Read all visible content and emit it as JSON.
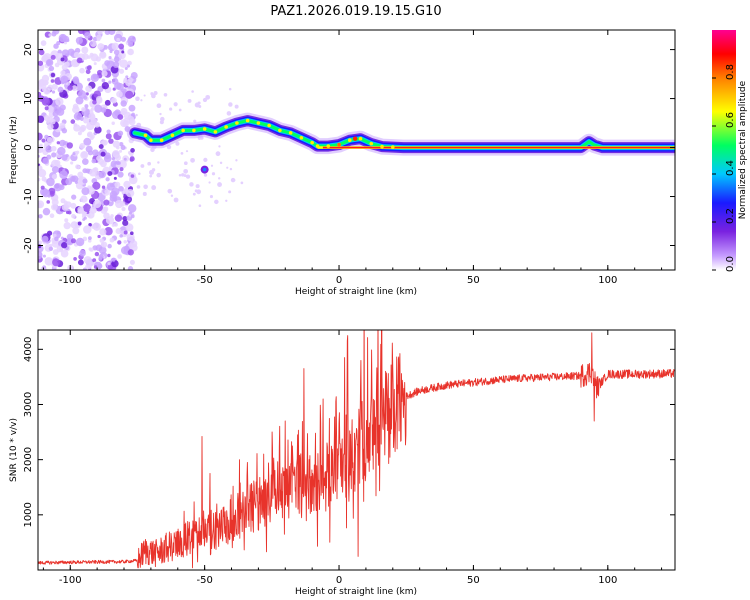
{
  "chart_data": [
    {
      "type": "heatmap",
      "title": "PAZ1.2026.019.19.15.G10",
      "xlabel": "Height of straight line (km)",
      "ylabel": "Frequency (Hz)",
      "xlim": [
        -112,
        125
      ],
      "ylim": [
        -25,
        24
      ],
      "xticks": [
        -100,
        -50,
        0,
        50,
        100
      ],
      "xtick_labels": [
        "-100",
        "-50",
        "0",
        "50",
        "100"
      ],
      "yticks": [
        -20,
        -10,
        0,
        10,
        20
      ],
      "ytick_labels": [
        "-20",
        "-10",
        "0",
        "10",
        "20"
      ],
      "ridge": {
        "x": [
          -76,
          -72,
          -70,
          -66,
          -62,
          -58,
          -54,
          -50,
          -46,
          -42,
          -38,
          -34,
          -30,
          -26,
          -22,
          -18,
          -14,
          -10,
          -8,
          -4,
          0,
          4,
          8,
          12,
          16,
          20,
          24,
          30,
          40,
          60,
          80,
          90,
          93,
          95,
          98,
          125
        ],
        "y": [
          3.0,
          2.5,
          1.5,
          1.5,
          2.5,
          3.5,
          3.5,
          3.8,
          3.2,
          4.2,
          5.0,
          5.5,
          5.0,
          4.5,
          3.5,
          3.0,
          2.0,
          1.0,
          0.3,
          0.3,
          0.6,
          1.5,
          1.8,
          0.8,
          0.2,
          0.1,
          0.0,
          0.0,
          0.0,
          0.0,
          0.0,
          0.0,
          1.2,
          0.5,
          0.0,
          0.0
        ]
      },
      "noise_region_x": [
        -112,
        -76
      ],
      "colorbar": {
        "label": "Normalized spectral amplitude",
        "range": [
          0.0,
          1.0
        ],
        "ticks": [
          0.0,
          0.2,
          0.4,
          0.6,
          0.8
        ],
        "tick_labels": [
          "0.0",
          "0.2",
          "0.4",
          "0.6",
          "0.8"
        ],
        "colors": [
          "#ffffff",
          "#8a2be2",
          "#0000ff",
          "#00ffff",
          "#00ff00",
          "#ffff00",
          "#ff7f00",
          "#ff0000",
          "#ff00aa"
        ]
      }
    },
    {
      "type": "line",
      "xlabel": "Height of straight line (km)",
      "ylabel": "SNR (10 * v/v)",
      "xlim": [
        -112,
        125
      ],
      "ylim": [
        0,
        4350
      ],
      "xticks": [
        -100,
        -50,
        0,
        50,
        100
      ],
      "xtick_labels": [
        "-100",
        "-50",
        "0",
        "50",
        "100"
      ],
      "yticks": [
        1000,
        2000,
        3000,
        4000
      ],
      "ytick_labels": [
        "1000",
        "2000",
        "3000",
        "4000"
      ],
      "series": [
        {
          "name": "SNR",
          "color": "#e8332b",
          "envelope_x": [
            -112,
            -100,
            -80,
            -75,
            -72,
            -68,
            -64,
            -60,
            -55,
            -50,
            -45,
            -40,
            -35,
            -30,
            -25,
            -20,
            -15,
            -10,
            -5,
            0,
            5,
            10,
            15,
            20,
            25,
            30,
            40,
            50,
            60,
            70,
            80,
            90,
            94,
            96,
            100,
            110,
            125
          ],
          "envelope_y": [
            130,
            140,
            150,
            170,
            350,
            300,
            400,
            480,
            600,
            800,
            700,
            900,
            1050,
            1200,
            1300,
            1450,
            1600,
            1500,
            1700,
            2000,
            2200,
            2400,
            2600,
            2900,
            3150,
            3250,
            3350,
            3400,
            3450,
            3480,
            3500,
            3520,
            3600,
            3300,
            3550,
            3550,
            3560
          ],
          "spikes": [
            {
              "x": -51,
              "y": 2420
            },
            {
              "x": -48,
              "y": 1750
            },
            {
              "x": -37,
              "y": 2000
            },
            {
              "x": -28,
              "y": 2100
            },
            {
              "x": -20,
              "y": 2700
            },
            {
              "x": -13,
              "y": 3650
            },
            {
              "x": -6,
              "y": 3100
            },
            {
              "x": 2,
              "y": 3850
            },
            {
              "x": 8,
              "y": 3300
            },
            {
              "x": 16,
              "y": 3500
            },
            {
              "x": 94,
              "y": 4300
            },
            {
              "x": 95,
              "y": 2700
            }
          ]
        }
      ]
    }
  ]
}
